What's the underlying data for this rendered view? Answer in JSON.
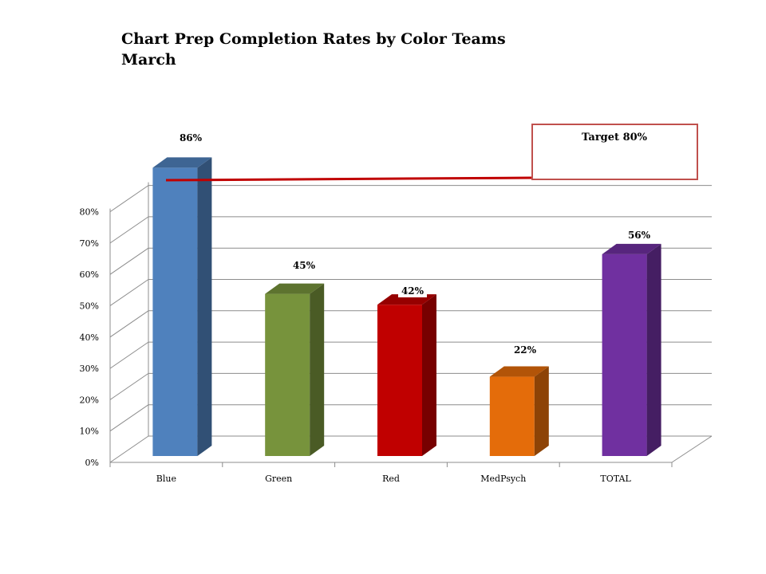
{
  "chart_data": {
    "type": "bar",
    "title": "Chart Prep Completion Rates by Color Teams",
    "subtitle": "March",
    "categories": [
      "Blue",
      "Green",
      "Red",
      "MedPsych",
      "TOTAL"
    ],
    "values": [
      86,
      45,
      42,
      22,
      56
    ],
    "data_labels": [
      "86%",
      "45%",
      "42%",
      "22%",
      "56%"
    ],
    "colors": [
      "#4f81bd",
      "#77933c",
      "#c00000",
      "#e46c0a",
      "#7030a0"
    ],
    "ylim": [
      0,
      80
    ],
    "yticks": [
      "0%",
      "10%",
      "20%",
      "30%",
      "40%",
      "50%",
      "60%",
      "70%",
      "80%"
    ],
    "target": {
      "value": 80,
      "label": "Target 80%",
      "color": "#c00000"
    },
    "grid": true,
    "style": "3d-column"
  }
}
